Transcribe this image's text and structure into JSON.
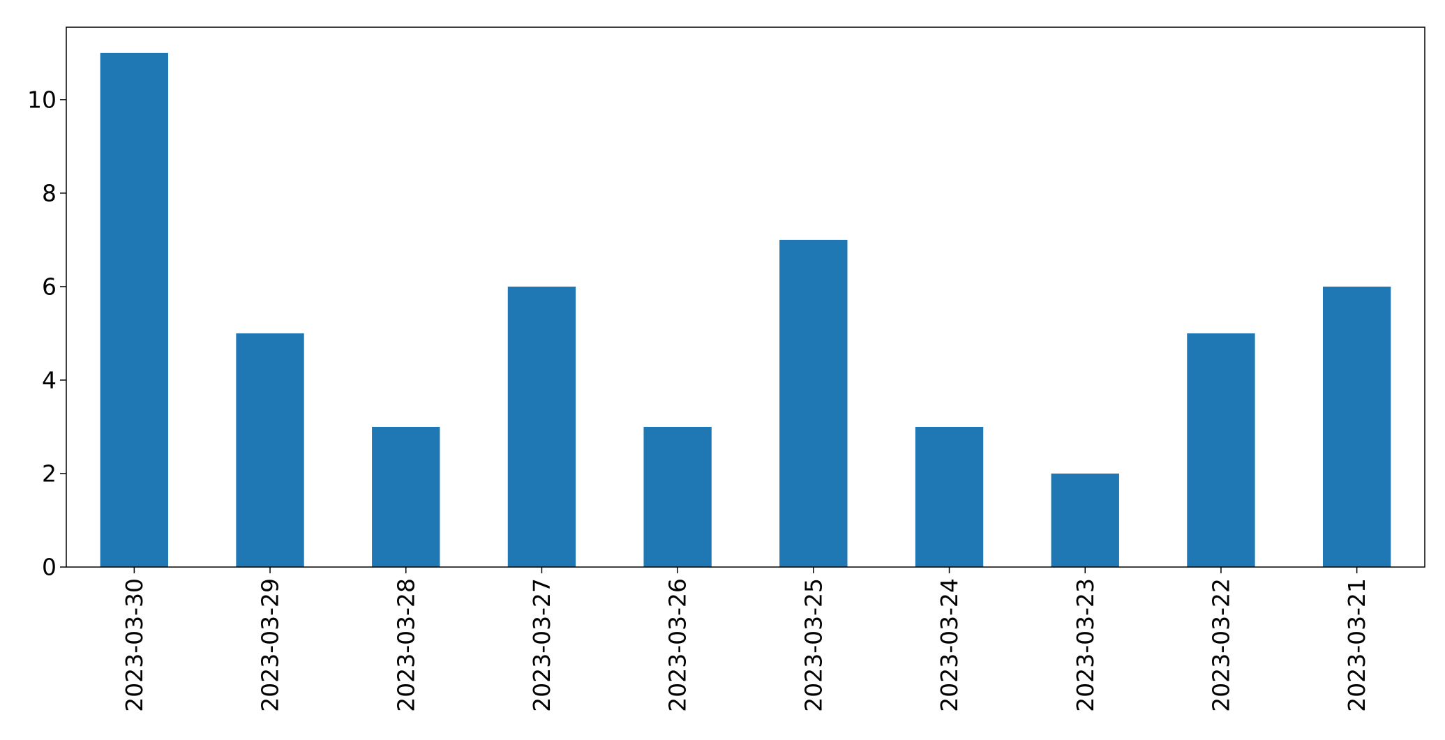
{
  "chart_data": {
    "type": "bar",
    "title": "",
    "xlabel": "",
    "ylabel": "",
    "categories": [
      "2023-03-30",
      "2023-03-29",
      "2023-03-28",
      "2023-03-27",
      "2023-03-26",
      "2023-03-25",
      "2023-03-24",
      "2023-03-23",
      "2023-03-22",
      "2023-03-21"
    ],
    "values": [
      11,
      5,
      3,
      6,
      3,
      7,
      3,
      2,
      5,
      6
    ],
    "ylim": [
      0,
      11.55
    ],
    "yticks": [
      0,
      2,
      4,
      6,
      8,
      10
    ],
    "grid": false,
    "legend": "none",
    "bar_color": "#1f77b4"
  }
}
